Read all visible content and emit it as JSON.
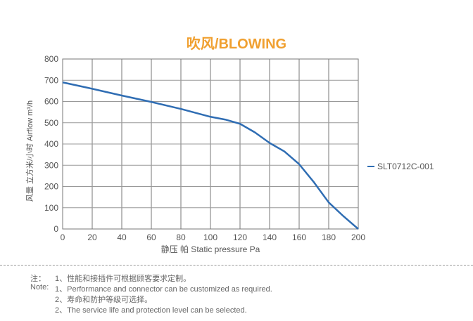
{
  "chart_data": {
    "type": "line",
    "title": "吹风/BLOWING",
    "xlabel": "静压  帕 Static pressure Pa",
    "ylabel": "风量  立方米/小时 Airflow m³/h",
    "xlim": [
      0,
      200
    ],
    "ylim": [
      0,
      800
    ],
    "xticks": [
      0,
      20,
      40,
      60,
      80,
      100,
      120,
      140,
      160,
      180,
      200
    ],
    "yticks": [
      0,
      100,
      200,
      300,
      400,
      500,
      600,
      700,
      800
    ],
    "grid": true,
    "legend_position": "right",
    "series": [
      {
        "name": "SLT0712C-001",
        "color": "#2f6db3",
        "x": [
          0,
          20,
          40,
          60,
          80,
          100,
          110,
          120,
          130,
          140,
          150,
          160,
          170,
          180,
          190,
          200
        ],
        "y": [
          690,
          660,
          628,
          598,
          565,
          528,
          515,
          495,
          455,
          405,
          365,
          305,
          220,
          125,
          60,
          0
        ]
      }
    ]
  },
  "notes": {
    "label_cn": "注：",
    "label_en": "Note:",
    "lines": [
      "1、性能和接插件可根据顾客要求定制。",
      "1、Performance and connector can be customized as required.",
      "2、寿命和防护等级可选择。",
      "2、The service life and protection level can be selected."
    ]
  }
}
